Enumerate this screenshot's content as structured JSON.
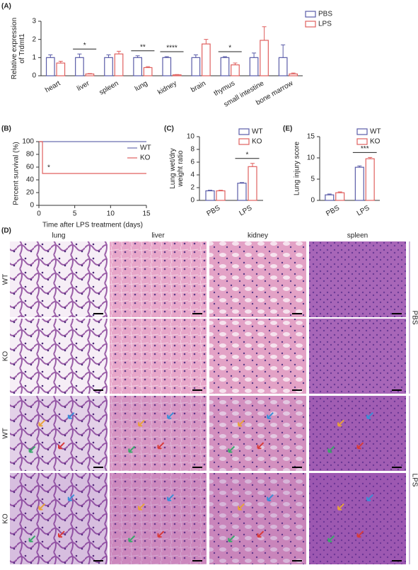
{
  "chart_data": [
    {
      "type": "bar",
      "panel": "(A)",
      "ylabel": [
        "Relative expression",
        "of Trdmt1"
      ],
      "categories": [
        "heart",
        "liver",
        "spleen",
        "lung",
        "kidney",
        "brain",
        "thymus",
        "small intestine",
        "bone marrow"
      ],
      "series": [
        {
          "name": "PBS",
          "color": "#5a5ca8",
          "values": [
            1.0,
            1.0,
            1.0,
            1.0,
            1.0,
            1.0,
            1.0,
            1.0,
            1.0
          ],
          "errors": [
            0.15,
            0.2,
            0.15,
            0.1,
            0.05,
            0.15,
            0.05,
            0.25,
            0.7
          ]
        },
        {
          "name": "LPS",
          "color": "#e0605f",
          "values": [
            0.7,
            0.1,
            1.2,
            0.45,
            0.05,
            1.75,
            0.6,
            1.95,
            0.1
          ],
          "errors": [
            0.1,
            0.02,
            0.15,
            0.05,
            0.02,
            0.25,
            0.1,
            0.75,
            0.05
          ]
        }
      ],
      "significance": [
        null,
        "*",
        null,
        "**",
        "****",
        null,
        "*",
        null,
        null
      ],
      "ylim": [
        0,
        3
      ],
      "yticks": [
        0,
        1,
        2,
        3
      ]
    },
    {
      "type": "line",
      "panel": "(B)",
      "ylabel": [
        "Percent survival (%)"
      ],
      "xlabel": "Time after LPS treatment (days)",
      "series": [
        {
          "name": "WT",
          "color": "#6a6fb0",
          "x": [
            0,
            15
          ],
          "values": [
            100,
            100
          ]
        },
        {
          "name": "KO",
          "color": "#e0605f",
          "x": [
            0,
            0.5,
            0.5,
            15
          ],
          "values": [
            100,
            100,
            50,
            50
          ]
        }
      ],
      "annotation": "*",
      "xlim": [
        0,
        15
      ],
      "xticks": [
        0,
        5,
        10,
        15
      ],
      "ylim": [
        0,
        100
      ],
      "yticks": [
        0,
        20,
        40,
        60,
        80,
        100
      ]
    },
    {
      "type": "bar",
      "panel": "(C)",
      "ylabel": [
        "Lung wet/dry",
        "weight ratio"
      ],
      "categories": [
        "PBS",
        "LPS"
      ],
      "series": [
        {
          "name": "WT",
          "color": "#5a5ca8",
          "values": [
            1.5,
            2.7
          ],
          "errors": [
            0.1,
            0.1
          ]
        },
        {
          "name": "KO",
          "color": "#e0605f",
          "values": [
            1.5,
            5.3
          ],
          "errors": [
            0.1,
            0.5
          ]
        }
      ],
      "significance": [
        null,
        "*"
      ],
      "ylim": [
        0,
        10
      ],
      "yticks": [
        0,
        2,
        4,
        6,
        8,
        10
      ]
    },
    {
      "type": "bar",
      "panel": "(E)",
      "ylabel": [
        "Lung injury score"
      ],
      "categories": [
        "PBS",
        "LPS"
      ],
      "series": [
        {
          "name": "WT",
          "color": "#5a5ca8",
          "values": [
            1.3,
            7.8
          ],
          "errors": [
            0.2,
            0.3
          ]
        },
        {
          "name": "KO",
          "color": "#e0605f",
          "values": [
            1.8,
            9.8
          ],
          "errors": [
            0.2,
            0.3
          ]
        }
      ],
      "significance": [
        null,
        "***"
      ],
      "ylim": [
        0,
        15
      ],
      "yticks": [
        0,
        5,
        10,
        15
      ]
    }
  ],
  "panel_d": {
    "panel": "(D)",
    "columns": [
      "lung",
      "liver",
      "kidney",
      "spleen"
    ],
    "rows": [
      "WT",
      "KO",
      "WT",
      "KO"
    ],
    "groups": [
      "PBS",
      "LPS"
    ]
  }
}
